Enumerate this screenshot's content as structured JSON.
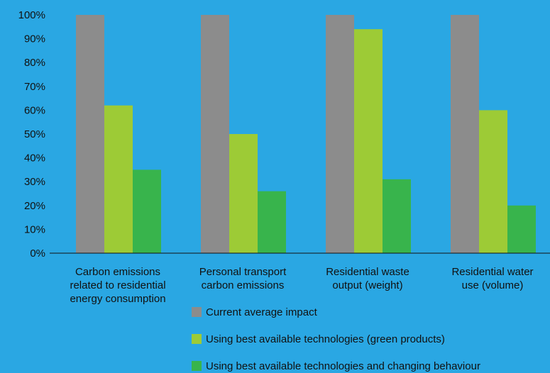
{
  "chart_data": {
    "type": "bar",
    "categories": [
      [
        "Carbon emissions",
        "related to residential",
        "energy consumption"
      ],
      [
        "Personal transport",
        "carbon emissions"
      ],
      [
        "Residential waste",
        "output (weight)"
      ],
      [
        "Residential water",
        "use (volume)"
      ]
    ],
    "series": [
      {
        "name": "Current average impact",
        "values": [
          100,
          100,
          100,
          100
        ],
        "color": "#8c8c8c"
      },
      {
        "name": "Using best available technologies (green products)",
        "values": [
          62,
          50,
          94,
          60
        ],
        "color": "#9dcb36"
      },
      {
        "name": "Using best available technologies and changing behaviour",
        "values": [
          35,
          26,
          31,
          20
        ],
        "color": "#38b44c"
      }
    ],
    "ylim": [
      0,
      100
    ],
    "yticks": [
      "0%",
      "10%",
      "20%",
      "30%",
      "40%",
      "50%",
      "60%",
      "70%",
      "80%",
      "90%",
      "100%"
    ],
    "grid": false,
    "legend_position": "bottom",
    "background": "#2aa7e3"
  }
}
